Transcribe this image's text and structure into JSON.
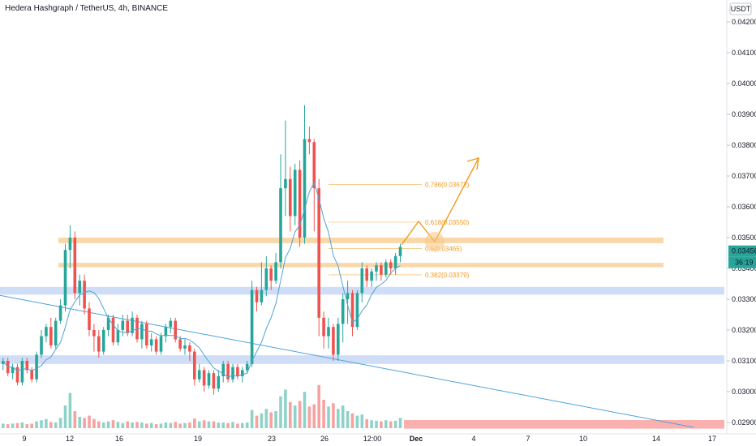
{
  "header": {
    "title": "Hedera Hashgraph / TetherUS, 4h, BINANCE"
  },
  "axis": {
    "currency": "USDT",
    "price_label": "0.03456",
    "countdown_label": "36:19",
    "y_ticks": [
      "0.04200",
      "0.04100",
      "0.04000",
      "0.03900",
      "0.03800",
      "0.03700",
      "0.03600",
      "0.03500",
      "0.03400",
      "0.03300",
      "0.03200",
      "0.03100",
      "0.03000",
      "0.02900"
    ],
    "x_ticks": [
      "9",
      "12",
      "16",
      "19",
      "23",
      "26",
      "12:00",
      "Dec",
      "4",
      "7",
      "10",
      "14",
      "17"
    ]
  },
  "colors": {
    "up": "#26a69a",
    "down": "#ef5350",
    "vol_up": "#8fd3c8",
    "vol_down": "#f5a3a1",
    "ma": "#4ea3d9",
    "orange": "#f19a1f",
    "orange_band": "#f7c98b",
    "blue_band": "#bfd2f3",
    "red_band": "#f8a7a5"
  },
  "chart_data": {
    "type": "candlestick",
    "title": "Hedera Hashgraph / TetherUS, 4h, BINANCE",
    "y_range": [
      0.0288,
      0.0425
    ],
    "fib_levels": [
      {
        "label": "0.786(0.03672)",
        "value": 0.03672
      },
      {
        "label": "0.618(0.03550)",
        "value": 0.0355
      },
      {
        "label": "0.5(0.03465)",
        "value": 0.03465
      },
      {
        "label": "0.382(0.03379)",
        "value": 0.03379
      }
    ],
    "zones": [
      {
        "kind": "resistance",
        "low": 0.03482,
        "high": 0.035
      },
      {
        "kind": "resistance",
        "low": 0.03404,
        "high": 0.03418
      },
      {
        "kind": "support",
        "low": 0.03315,
        "high": 0.0334
      },
      {
        "kind": "support",
        "low": 0.0309,
        "high": 0.03118
      },
      {
        "kind": "base",
        "low": 0.0288,
        "high": 0.02908
      }
    ],
    "last_price": 0.03456,
    "candles": [
      [
        0.0309,
        0.031,
        0.0307,
        0.0311
      ],
      [
        0.031,
        0.0306,
        0.0305,
        0.0311
      ],
      [
        0.0306,
        0.0308,
        0.0304,
        0.0309
      ],
      [
        0.0308,
        0.0303,
        0.0302,
        0.0309
      ],
      [
        0.0303,
        0.031,
        0.0302,
        0.0311
      ],
      [
        0.031,
        0.0307,
        0.0306,
        0.0311
      ],
      [
        0.0307,
        0.0304,
        0.0303,
        0.0308
      ],
      [
        0.0304,
        0.0312,
        0.0303,
        0.0313
      ],
      [
        0.0312,
        0.0318,
        0.0311,
        0.032
      ],
      [
        0.0318,
        0.0321,
        0.0316,
        0.0322
      ],
      [
        0.0321,
        0.0315,
        0.0314,
        0.0324
      ],
      [
        0.0315,
        0.0323,
        0.0314,
        0.0324
      ],
      [
        0.0323,
        0.0328,
        0.0322,
        0.033
      ],
      [
        0.0328,
        0.0346,
        0.0326,
        0.0348
      ],
      [
        0.0346,
        0.035,
        0.034,
        0.0354
      ],
      [
        0.035,
        0.0332,
        0.033,
        0.0352
      ],
      [
        0.0332,
        0.0336,
        0.0328,
        0.0338
      ],
      [
        0.0336,
        0.0327,
        0.0325,
        0.0338
      ],
      [
        0.0327,
        0.032,
        0.0318,
        0.0329
      ],
      [
        0.032,
        0.0318,
        0.0313,
        0.0322
      ],
      [
        0.0318,
        0.0313,
        0.0311,
        0.032
      ],
      [
        0.0313,
        0.032,
        0.0312,
        0.0321
      ],
      [
        0.032,
        0.0324,
        0.0318,
        0.0325
      ],
      [
        0.0324,
        0.0316,
        0.0315,
        0.0325
      ],
      [
        0.0316,
        0.032,
        0.0315,
        0.0322
      ],
      [
        0.032,
        0.0323,
        0.0318,
        0.0325
      ],
      [
        0.0323,
        0.0319,
        0.0318,
        0.0325
      ],
      [
        0.0319,
        0.0324,
        0.0318,
        0.0326
      ],
      [
        0.0324,
        0.0317,
        0.0316,
        0.0325
      ],
      [
        0.0317,
        0.0322,
        0.0314,
        0.0323
      ],
      [
        0.0322,
        0.0315,
        0.0314,
        0.0323
      ],
      [
        0.0315,
        0.0317,
        0.0313,
        0.0319
      ],
      [
        0.0317,
        0.0313,
        0.0312,
        0.0318
      ],
      [
        0.0313,
        0.0318,
        0.0312,
        0.0319
      ],
      [
        0.0318,
        0.0321,
        0.0316,
        0.0322
      ],
      [
        0.0321,
        0.0323,
        0.0319,
        0.0324
      ],
      [
        0.0323,
        0.0317,
        0.0316,
        0.0324
      ],
      [
        0.0317,
        0.0314,
        0.0313,
        0.0318
      ],
      [
        0.0314,
        0.0315,
        0.0312,
        0.0317
      ],
      [
        0.0315,
        0.0313,
        0.031,
        0.0316
      ],
      [
        0.0313,
        0.0304,
        0.0302,
        0.0314
      ],
      [
        0.0304,
        0.0307,
        0.0303,
        0.0309
      ],
      [
        0.0307,
        0.0302,
        0.03,
        0.0308
      ],
      [
        0.0302,
        0.0306,
        0.0301,
        0.0307
      ],
      [
        0.0306,
        0.0301,
        0.0299,
        0.0307
      ],
      [
        0.0301,
        0.0305,
        0.03,
        0.0307
      ],
      [
        0.0305,
        0.0309,
        0.0303,
        0.031
      ],
      [
        0.0309,
        0.0304,
        0.0303,
        0.031
      ],
      [
        0.0304,
        0.0308,
        0.0303,
        0.0309
      ],
      [
        0.0308,
        0.0305,
        0.0304,
        0.0309
      ],
      [
        0.0305,
        0.0307,
        0.0303,
        0.0308
      ],
      [
        0.0307,
        0.0309,
        0.0306,
        0.031
      ],
      [
        0.0309,
        0.0333,
        0.0308,
        0.0336
      ],
      [
        0.0333,
        0.0329,
        0.0326,
        0.0334
      ],
      [
        0.0329,
        0.0333,
        0.0328,
        0.0342
      ],
      [
        0.0333,
        0.034,
        0.0331,
        0.0344
      ],
      [
        0.034,
        0.0336,
        0.0333,
        0.0341
      ],
      [
        0.0336,
        0.0342,
        0.0335,
        0.0345
      ],
      [
        0.0342,
        0.0366,
        0.034,
        0.0377
      ],
      [
        0.0366,
        0.0369,
        0.0357,
        0.0388
      ],
      [
        0.0369,
        0.0357,
        0.0352,
        0.0373
      ],
      [
        0.0357,
        0.0372,
        0.0354,
        0.0374
      ],
      [
        0.0372,
        0.035,
        0.0347,
        0.0375
      ],
      [
        0.035,
        0.0382,
        0.0348,
        0.0393
      ],
      [
        0.0382,
        0.0381,
        0.0377,
        0.0386
      ],
      [
        0.0381,
        0.0366,
        0.0352,
        0.0382
      ],
      [
        0.0366,
        0.0324,
        0.0318,
        0.0369
      ],
      [
        0.0324,
        0.0318,
        0.0314,
        0.0326
      ],
      [
        0.0318,
        0.0321,
        0.0314,
        0.0324
      ],
      [
        0.0321,
        0.0312,
        0.031,
        0.0322
      ],
      [
        0.0312,
        0.0322,
        0.031,
        0.0324
      ],
      [
        0.0322,
        0.033,
        0.0316,
        0.0332
      ],
      [
        0.033,
        0.0332,
        0.0322,
        0.0336
      ],
      [
        0.0332,
        0.0321,
        0.0318,
        0.0333
      ],
      [
        0.0321,
        0.0332,
        0.032,
        0.0333
      ],
      [
        0.0332,
        0.034,
        0.0329,
        0.0342
      ],
      [
        0.034,
        0.0336,
        0.0334,
        0.0341
      ],
      [
        0.0336,
        0.0339,
        0.0334,
        0.034
      ],
      [
        0.0339,
        0.0341,
        0.0336,
        0.0342
      ],
      [
        0.0341,
        0.0338,
        0.0336,
        0.0342
      ],
      [
        0.0338,
        0.0342,
        0.0337,
        0.0343
      ],
      [
        0.0342,
        0.034,
        0.0338,
        0.0343
      ],
      [
        0.034,
        0.0344,
        0.0338,
        0.0345
      ],
      [
        0.0344,
        0.0347,
        0.0342,
        0.0348
      ]
    ],
    "volumes": [
      0.08,
      0.07,
      0.08,
      0.09,
      0.1,
      0.07,
      0.08,
      0.12,
      0.14,
      0.16,
      0.11,
      0.1,
      0.18,
      0.4,
      0.62,
      0.3,
      0.2,
      0.18,
      0.22,
      0.16,
      0.12,
      0.1,
      0.12,
      0.14,
      0.11,
      0.09,
      0.12,
      0.1,
      0.11,
      0.1,
      0.08,
      0.09,
      0.07,
      0.08,
      0.1,
      0.09,
      0.11,
      0.08,
      0.09,
      0.1,
      0.17,
      0.12,
      0.14,
      0.12,
      0.12,
      0.1,
      0.1,
      0.09,
      0.11,
      0.08,
      0.09,
      0.1,
      0.32,
      0.22,
      0.26,
      0.34,
      0.28,
      0.3,
      0.56,
      0.68,
      0.46,
      0.4,
      0.48,
      0.64,
      0.38,
      0.42,
      0.76,
      0.5,
      0.38,
      0.44,
      0.34,
      0.4,
      0.3,
      0.26,
      0.22,
      0.24,
      0.16,
      0.14,
      0.13,
      0.12,
      0.14,
      0.12,
      0.13,
      0.18
    ],
    "ma_path_note": ""
  }
}
